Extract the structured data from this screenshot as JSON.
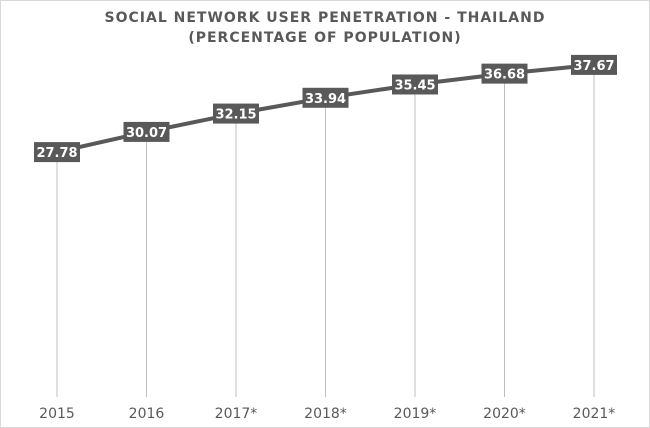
{
  "chart_data": {
    "type": "line",
    "title_lines": [
      "SOCIAL NETWORK USER PENETRATION - THAILAND",
      "(PERCENTAGE OF POPULATION)"
    ],
    "categories": [
      "2015",
      "2016",
      "2017*",
      "2018*",
      "2019*",
      "2020*",
      "2021*"
    ],
    "series": [
      {
        "values": [
          27.78,
          30.07,
          32.15,
          33.94,
          35.45,
          36.68,
          37.67
        ]
      }
    ],
    "data_labels": [
      "27.78",
      "30.07",
      "32.15",
      "33.94",
      "35.45",
      "36.68",
      "37.67"
    ],
    "ylim": [
      0,
      38
    ],
    "drop_lines": true,
    "grid": false,
    "legend": "none",
    "colors": {
      "line": "#595959",
      "label_bg": "#595959",
      "label_text": "#ffffff",
      "axis_text": "#595959",
      "drop_line": "#bfbfbf"
    }
  }
}
